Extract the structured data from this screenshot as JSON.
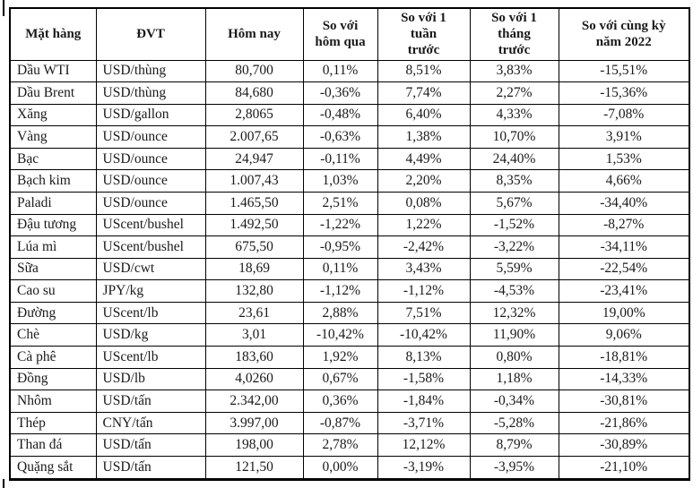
{
  "colors": {
    "background": "#ffffff",
    "border": "#000000",
    "text": "#1a1a1a"
  },
  "table": {
    "headers": [
      "Mặt hàng",
      "ĐVT",
      "Hôm nay",
      "So với\nhôm qua",
      "So với 1\ntuần\ntrước",
      "So với 1\ntháng\ntrước",
      "So với cùng kỳ\nnăm 2022"
    ],
    "rows": [
      [
        "Dầu WTI",
        "USD/thùng",
        "80,700",
        "0,11%",
        "8,51%",
        "3,83%",
        "-15,51%"
      ],
      [
        "Dầu Brent",
        "USD/thùng",
        "84,680",
        "-0,36%",
        "7,74%",
        "2,27%",
        "-15,36%"
      ],
      [
        "Xăng",
        "USD/gallon",
        "2,8065",
        "-0,48%",
        "6,40%",
        "4,33%",
        "-7,08%"
      ],
      [
        "Vàng",
        "USD/ounce",
        "2.007,65",
        "-0,63%",
        "1,38%",
        "10,70%",
        "3,91%"
      ],
      [
        "Bạc",
        "USD/ounce",
        "24,947",
        "-0,11%",
        "4,49%",
        "24,40%",
        "1,53%"
      ],
      [
        "Bạch kim",
        "USD/ounce",
        "1.007,43",
        "1,03%",
        "2,20%",
        "8,35%",
        "4,66%"
      ],
      [
        "Paladi",
        "USD/ounce",
        "1.465,50",
        "2,51%",
        "0,08%",
        "5,67%",
        "-34,40%"
      ],
      [
        "Đậu tương",
        "UScent/bushel",
        "1.492,50",
        "-1,22%",
        "1,22%",
        "-1,52%",
        "-8,27%"
      ],
      [
        "Lúa mì",
        "UScent/bushel",
        "675,50",
        "-0,95%",
        "-2,42%",
        "-3,22%",
        "-34,11%"
      ],
      [
        "Sữa",
        "USD/cwt",
        "18,69",
        "0,11%",
        "3,43%",
        "5,59%",
        "-22,54%"
      ],
      [
        "Cao su",
        "JPY/kg",
        "132,80",
        "-1,12%",
        "-1,12%",
        "-4,53%",
        "-23,41%"
      ],
      [
        "Đường",
        "UScent/lb",
        "23,61",
        "2,88%",
        "7,51%",
        "12,32%",
        "19,00%"
      ],
      [
        "Chè",
        "USD/kg",
        "3,01",
        "-10,42%",
        "-10,42%",
        "11,90%",
        "9,06%"
      ],
      [
        "Cà phê",
        "UScent/lb",
        "183,60",
        "1,92%",
        "8,13%",
        "0,80%",
        "-18,81%"
      ],
      [
        "Đồng",
        "USD/lb",
        "4,0260",
        "0,67%",
        "-1,58%",
        "1,18%",
        "-14,33%"
      ],
      [
        "Nhôm",
        "USD/tấn",
        "2.342,00",
        "0,36%",
        "-1,84%",
        "-0,34%",
        "-30,81%"
      ],
      [
        "Thép",
        "CNY/tấn",
        "3.997,00",
        "-0,87%",
        "-3,71%",
        "-5,28%",
        "-21,86%"
      ],
      [
        "Than đá",
        "USD/tấn",
        "198,00",
        "2,78%",
        "12,12%",
        "8,79%",
        "-30,89%"
      ],
      [
        "Quặng sắt",
        "USD/tấn",
        "121,50",
        "0,00%",
        "-3,19%",
        "-3,95%",
        "-21,10%"
      ]
    ]
  }
}
